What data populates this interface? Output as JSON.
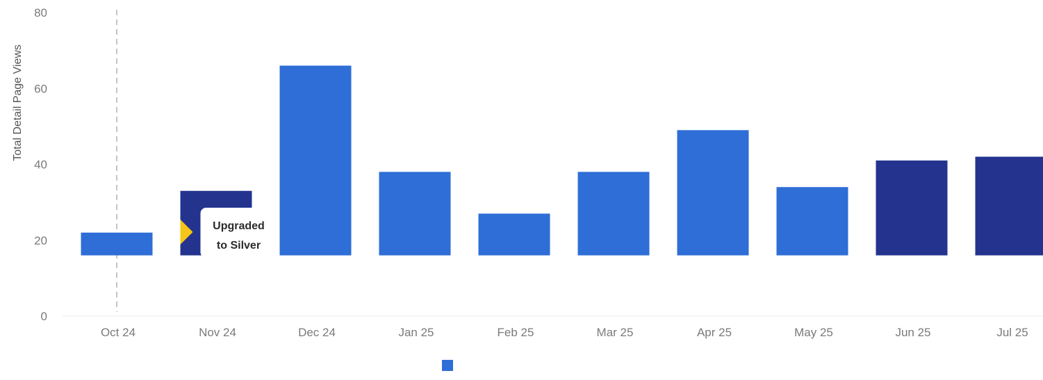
{
  "chart_data": {
    "type": "bar",
    "ylabel": "Total Detail Page Views",
    "ylim": [
      0,
      80
    ],
    "yticks": [
      0,
      20,
      40,
      60,
      80
    ],
    "categories": [
      "Oct 24",
      "Nov 24",
      "Dec 24",
      "Jan 25",
      "Feb 25",
      "Mar 25",
      "Apr 25",
      "May 25",
      "Jun 25",
      "Jul 25"
    ],
    "values": [
      22,
      33,
      66,
      38,
      27,
      38,
      49,
      34,
      41,
      42
    ],
    "baseline": 16,
    "bar_colors": [
      "#2e6ed6",
      "#24348e",
      "#2e6ed6",
      "#2e6ed6",
      "#2e6ed6",
      "#2e6ed6",
      "#2e6ed6",
      "#2e6ed6",
      "#24348e",
      "#24348e"
    ],
    "annotation": {
      "category": "Nov 24",
      "line1": "Upgraded",
      "line2": "to Silver",
      "marker_color": "#f5c518"
    },
    "reference_line_category": "Oct 24",
    "legend_color": "#2e6ed6",
    "legend_position": "bottom-center",
    "grid": false
  }
}
